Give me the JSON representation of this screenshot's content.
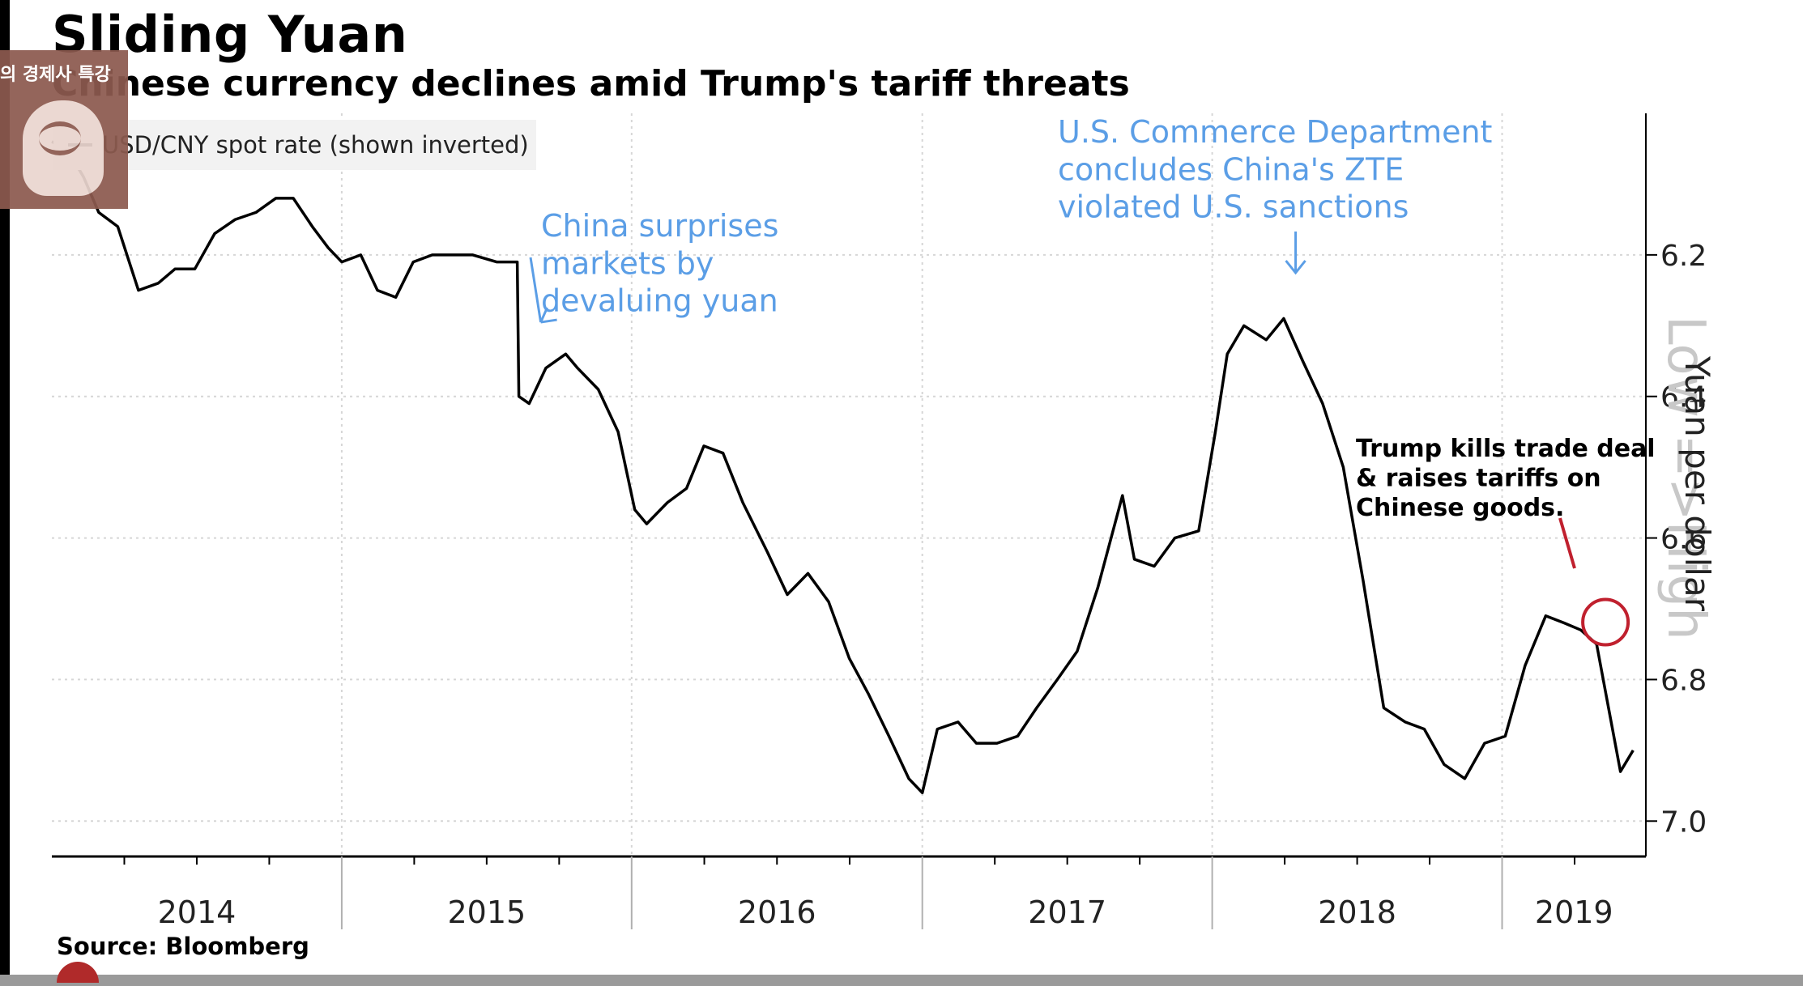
{
  "title": "Sliding Yuan",
  "subtitle": "Chinese currency declines amid Trump's tariff threats",
  "legend": {
    "label": "USD/CNY spot rate (shown inverted)"
  },
  "source": "Source: Bloomberg",
  "overlay": {
    "channel_text": "의 경제사 특강"
  },
  "chart_data": {
    "type": "line",
    "title": "Sliding Yuan",
    "subtitle": "Chinese currency declines amid Trump's tariff threats",
    "ylabel": "Yuan per dollar",
    "ylim": [
      6.0,
      7.05
    ],
    "y_inverted": true,
    "y_axis_side": "right",
    "yticks": [
      6.2,
      6.4,
      6.6,
      6.8,
      7.0
    ],
    "xlim": [
      "2014-01-01",
      "2019-07-01"
    ],
    "xticks": [
      "2014",
      "2015",
      "2016",
      "2017",
      "2018",
      "2019"
    ],
    "grid": true,
    "legend_position": "top-left",
    "direction_label": "Low =>High",
    "line_color": "#000000",
    "annotation_color": "#5b9ee6",
    "highlight_color": "#c0202e",
    "series": [
      {
        "name": "USD/CNY spot rate (shown inverted)",
        "x": [
          "2014-01-01",
          "2014-01-20",
          "2014-02-10",
          "2014-03-01",
          "2014-03-25",
          "2014-04-20",
          "2014-05-15",
          "2014-06-05",
          "2014-06-30",
          "2014-07-25",
          "2014-08-20",
          "2014-09-15",
          "2014-10-10",
          "2014-11-01",
          "2014-11-25",
          "2014-12-15",
          "2015-01-01",
          "2015-01-25",
          "2015-02-15",
          "2015-03-10",
          "2015-04-01",
          "2015-04-25",
          "2015-05-20",
          "2015-06-15",
          "2015-07-15",
          "2015-08-10",
          "2015-08-12",
          "2015-08-25",
          "2015-09-15",
          "2015-10-10",
          "2015-10-25",
          "2015-11-20",
          "2015-12-15",
          "2016-01-05",
          "2016-01-20",
          "2016-02-15",
          "2016-03-10",
          "2016-04-01",
          "2016-04-25",
          "2016-05-20",
          "2016-06-20",
          "2016-07-15",
          "2016-08-10",
          "2016-09-05",
          "2016-10-01",
          "2016-10-25",
          "2016-11-20",
          "2016-12-15",
          "2017-01-01",
          "2017-01-20",
          "2017-02-15",
          "2017-03-10",
          "2017-04-05",
          "2017-05-01",
          "2017-05-25",
          "2017-06-20",
          "2017-07-15",
          "2017-08-10",
          "2017-09-10",
          "2017-09-25",
          "2017-10-20",
          "2017-11-15",
          "2017-12-15",
          "2018-01-05",
          "2018-01-20",
          "2018-02-10",
          "2018-03-10",
          "2018-04-01",
          "2018-04-25",
          "2018-05-20",
          "2018-06-15",
          "2018-07-10",
          "2018-08-05",
          "2018-09-01",
          "2018-09-25",
          "2018-10-20",
          "2018-11-15",
          "2018-12-10",
          "2019-01-05",
          "2019-01-30",
          "2019-02-25",
          "2019-03-20",
          "2019-04-10",
          "2019-04-30",
          "2019-05-15",
          "2019-05-30",
          "2019-06-15"
        ],
        "values": [
          6.04,
          6.05,
          6.09,
          6.14,
          6.16,
          6.25,
          6.24,
          6.22,
          6.22,
          6.17,
          6.15,
          6.14,
          6.12,
          6.12,
          6.16,
          6.19,
          6.21,
          6.2,
          6.25,
          6.26,
          6.21,
          6.2,
          6.2,
          6.2,
          6.21,
          6.21,
          6.4,
          6.41,
          6.36,
          6.34,
          6.36,
          6.39,
          6.45,
          6.56,
          6.58,
          6.55,
          6.53,
          6.47,
          6.48,
          6.55,
          6.62,
          6.68,
          6.65,
          6.69,
          6.77,
          6.82,
          6.88,
          6.94,
          6.96,
          6.87,
          6.86,
          6.89,
          6.89,
          6.88,
          6.84,
          6.8,
          6.76,
          6.67,
          6.54,
          6.63,
          6.64,
          6.6,
          6.59,
          6.45,
          6.34,
          6.3,
          6.32,
          6.29,
          6.35,
          6.41,
          6.5,
          6.66,
          6.84,
          6.86,
          6.87,
          6.92,
          6.94,
          6.89,
          6.88,
          6.78,
          6.71,
          6.72,
          6.73,
          6.75,
          6.84,
          6.93,
          6.9
        ]
      }
    ],
    "annotations": [
      {
        "text": "China surprises markets by devaluing yuan",
        "x": "2015-08-11",
        "y": 6.27,
        "color": "#5b9ee6"
      },
      {
        "text": "U.S. Commerce Department concludes China's ZTE violated U.S. sanctions",
        "x": "2018-04-16",
        "y": 6.28,
        "color": "#5b9ee6"
      },
      {
        "text": "Trump kills trade deal & raises tariffs on Chinese goods.",
        "x": "2019-05-05",
        "y": 6.72,
        "color": "#000000"
      }
    ]
  }
}
